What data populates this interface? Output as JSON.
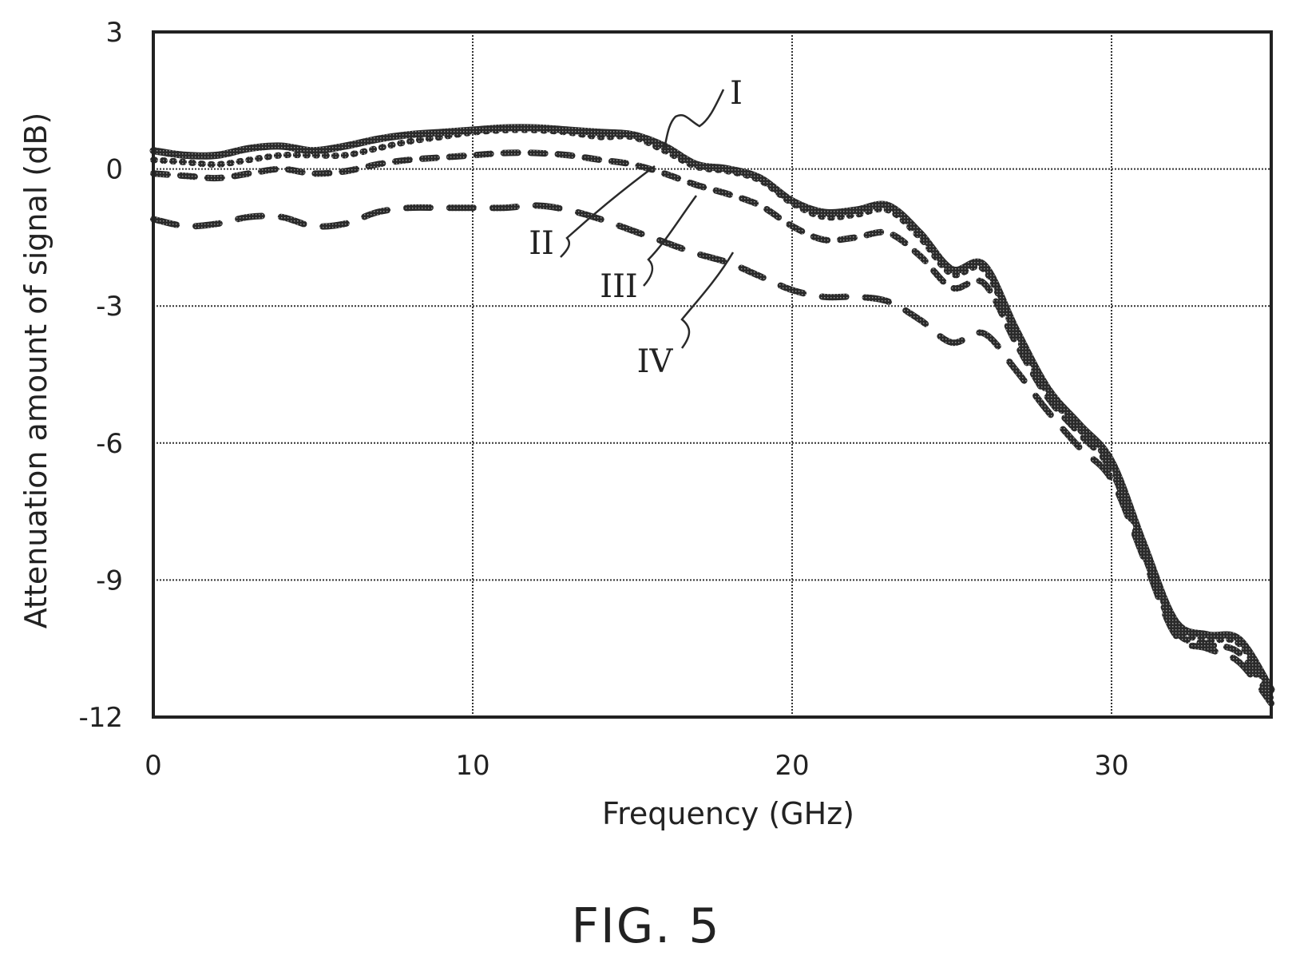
{
  "figure": {
    "caption": "FIG. 5"
  },
  "chart_data": {
    "type": "line",
    "xlabel": "Frequency (GHz)",
    "ylabel": "Attenuation amount of signal (dB)",
    "xlim": [
      0,
      35
    ],
    "ylim": [
      -12,
      3
    ],
    "xticks": [
      0,
      10,
      20,
      30
    ],
    "xtick_labels": [
      "0",
      "10",
      "20",
      "30"
    ],
    "yticks": [
      3,
      0,
      -3,
      -6,
      -9,
      -12
    ],
    "ytick_labels": [
      "3",
      "0",
      "-3",
      "-6",
      "-9",
      "-12"
    ],
    "grid": true,
    "series": [
      {
        "name": "I",
        "style": "solid",
        "x": [
          0,
          1,
          2,
          3,
          4,
          5,
          6,
          7,
          8,
          9,
          10,
          11,
          12,
          13,
          14,
          15,
          16,
          17,
          18,
          19,
          20,
          21,
          22,
          23,
          24,
          25,
          26,
          27,
          28,
          29,
          30,
          31,
          32,
          33,
          34,
          35
        ],
        "y": [
          0.4,
          0.3,
          0.3,
          0.45,
          0.5,
          0.4,
          0.5,
          0.65,
          0.75,
          0.8,
          0.85,
          0.9,
          0.9,
          0.85,
          0.8,
          0.75,
          0.5,
          0.1,
          0.0,
          -0.2,
          -0.7,
          -0.95,
          -0.9,
          -0.8,
          -1.4,
          -2.2,
          -2.1,
          -3.5,
          -4.8,
          -5.6,
          -6.4,
          -8.2,
          -9.9,
          -10.2,
          -10.3,
          -11.4
        ]
      },
      {
        "name": "II",
        "style": "dotted",
        "x": [
          0,
          1,
          2,
          3,
          4,
          5,
          6,
          7,
          8,
          9,
          10,
          11,
          12,
          13,
          14,
          15,
          16,
          17,
          18,
          19,
          20,
          21,
          22,
          23,
          24,
          25,
          26,
          27,
          28,
          29,
          30,
          31,
          32,
          33,
          34,
          35
        ],
        "y": [
          0.2,
          0.15,
          0.1,
          0.2,
          0.3,
          0.3,
          0.3,
          0.45,
          0.6,
          0.7,
          0.8,
          0.85,
          0.85,
          0.8,
          0.7,
          0.7,
          0.4,
          0.05,
          -0.05,
          -0.25,
          -0.75,
          -1.05,
          -1.0,
          -0.9,
          -1.5,
          -2.3,
          -2.2,
          -3.6,
          -4.9,
          -5.7,
          -6.5,
          -8.3,
          -10.0,
          -10.3,
          -10.4,
          -11.5
        ]
      },
      {
        "name": "III",
        "style": "short-dash",
        "x": [
          0,
          1,
          2,
          3,
          4,
          5,
          6,
          7,
          8,
          9,
          10,
          11,
          12,
          13,
          14,
          15,
          16,
          17,
          18,
          19,
          20,
          21,
          22,
          23,
          24,
          25,
          26,
          27,
          28,
          29,
          30,
          31,
          32,
          33,
          34,
          35
        ],
        "y": [
          -0.1,
          -0.15,
          -0.2,
          -0.1,
          0.0,
          -0.1,
          -0.05,
          0.1,
          0.2,
          0.25,
          0.3,
          0.35,
          0.35,
          0.3,
          0.2,
          0.1,
          -0.1,
          -0.35,
          -0.55,
          -0.8,
          -1.25,
          -1.55,
          -1.5,
          -1.4,
          -1.9,
          -2.6,
          -2.5,
          -3.8,
          -5.0,
          -5.8,
          -6.6,
          -8.4,
          -10.1,
          -10.4,
          -10.6,
          -11.6
        ]
      },
      {
        "name": "IV",
        "style": "long-dash",
        "x": [
          0,
          1,
          2,
          3,
          4,
          5,
          6,
          7,
          8,
          9,
          10,
          11,
          12,
          13,
          14,
          15,
          16,
          17,
          18,
          19,
          20,
          21,
          22,
          23,
          24,
          25,
          26,
          27,
          28,
          29,
          30,
          31,
          32,
          33,
          34,
          35
        ],
        "y": [
          -1.1,
          -1.25,
          -1.2,
          -1.05,
          -1.05,
          -1.25,
          -1.2,
          -0.95,
          -0.85,
          -0.85,
          -0.85,
          -0.85,
          -0.8,
          -0.9,
          -1.1,
          -1.35,
          -1.6,
          -1.85,
          -2.05,
          -2.35,
          -2.65,
          -2.8,
          -2.8,
          -2.9,
          -3.3,
          -3.8,
          -3.6,
          -4.4,
          -5.3,
          -6.1,
          -6.8,
          -8.5,
          -10.2,
          -10.5,
          -10.8,
          -11.7
        ]
      }
    ],
    "annotations": [
      "I",
      "II",
      "III",
      "IV"
    ]
  }
}
